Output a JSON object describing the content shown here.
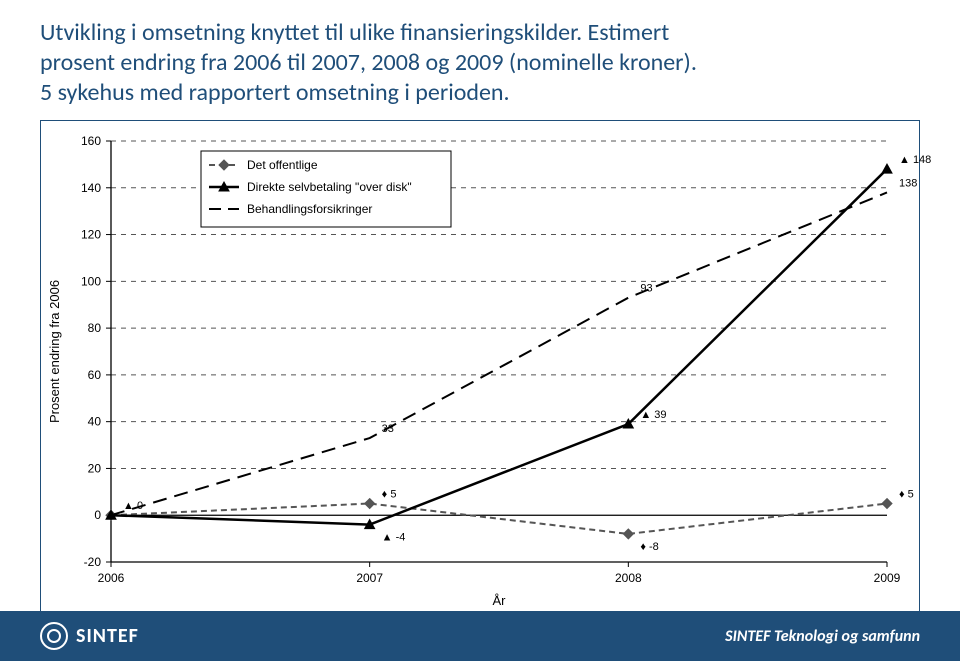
{
  "title_line1": "Utvikling i omsetning knyttet til ulike finansieringskilder. Estimert",
  "title_line2": "prosent endring fra 2006 til 2007, 2008 og 2009 (nominelle kroner).",
  "title_line3": "5 sykehus med rapportert omsetning i perioden.",
  "title_color": "#1f4e79",
  "chart": {
    "type": "line",
    "background_color": "#ffffff",
    "grid_color": "#555555",
    "grid_dash": "5,5",
    "axis_color": "#000000",
    "text_color": "#000000",
    "axis_font_size": 12,
    "label_font_size": 13,
    "x_label": "År",
    "y_label": "Prosent endring fra 2006",
    "x_categories": [
      "2006",
      "2007",
      "2008",
      "2009"
    ],
    "y_min": -20,
    "y_max": 160,
    "y_tick_step": 20,
    "legend": {
      "border_color": "#000000",
      "position": "top-left-inset",
      "font_size": 12,
      "items": [
        {
          "label": "Det offentlige",
          "marker": "diamond",
          "dash": "6,4",
          "color": "#555555",
          "width": 2
        },
        {
          "label": "Direkte selvbetaling \"over disk\"",
          "marker": "triangle",
          "dash": "none",
          "color": "#000000",
          "width": 2.5
        },
        {
          "label": "Behandlingsforsikringer",
          "marker": "none",
          "dash": "long",
          "color": "#000000",
          "width": 2
        }
      ]
    },
    "series": [
      {
        "name": "Det offentlige",
        "color": "#555555",
        "dash": "6,4",
        "width": 2,
        "marker": "diamond",
        "labels_visible": [
          null,
          5,
          -8,
          5
        ],
        "label_prefix": true,
        "data": [
          0,
          5,
          -8,
          5
        ]
      },
      {
        "name": "Direkte selvbetaling over disk",
        "color": "#000000",
        "dash": "none",
        "width": 2.5,
        "marker": "triangle",
        "labels_visible": [
          0,
          -4,
          39,
          148
        ],
        "label_prefix": true,
        "data": [
          0,
          -4,
          39,
          148
        ]
      },
      {
        "name": "Behandlingsforsikringer",
        "color": "#000000",
        "dash": "long",
        "width": 2,
        "marker": "none",
        "labels_visible": [
          null,
          33,
          93,
          138
        ],
        "label_prefix": false,
        "data": [
          0,
          33,
          93,
          138
        ]
      }
    ]
  },
  "footer": {
    "bg": "#1f4e79",
    "fg": "#ffffff",
    "logo_text": "SINTEF",
    "right_text": "SINTEF Teknologi og samfunn"
  }
}
